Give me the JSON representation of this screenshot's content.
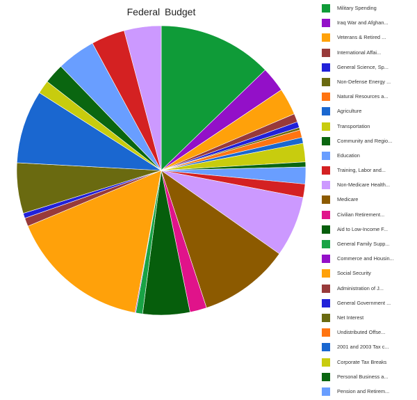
{
  "chart_data": {
    "type": "pie",
    "title": "Federal Budget",
    "legend_position": "right",
    "series": [
      {
        "name": "Military Spending",
        "value": 13.6,
        "color": "#0f9b38"
      },
      {
        "name": "Iraq War and Afghan...",
        "value": 3.0,
        "color": "#9310c8"
      },
      {
        "name": "Veterans & Retired ...",
        "value": 3.2,
        "color": "#ffa10a"
      },
      {
        "name": "International Affai...",
        "value": 1.0,
        "color": "#983a3a"
      },
      {
        "name": "General Science, Sp...",
        "value": 0.7,
        "color": "#2121d9"
      },
      {
        "name": "Non-Defense Energy ...",
        "value": 0.3,
        "color": "#6a6a10"
      },
      {
        "name": "Natural Resources a...",
        "value": 0.9,
        "color": "#ff7411"
      },
      {
        "name": "Agriculture",
        "value": 0.7,
        "color": "#1a67d0"
      },
      {
        "name": "Transportation",
        "value": 2.2,
        "color": "#c8cc0e"
      },
      {
        "name": "Community and Regio...",
        "value": 0.6,
        "color": "#0a6610"
      },
      {
        "name": "Education",
        "value": 2.0,
        "color": "#699eff"
      },
      {
        "name": "Training, Labor and...",
        "value": 1.6,
        "color": "#d42122"
      },
      {
        "name": "Non-Medicare Health...",
        "value": 7.2,
        "color": "#cc99ff"
      },
      {
        "name": "Medicare",
        "value": 10.8,
        "color": "#8c5a00"
      },
      {
        "name": "Civilian Retirement...",
        "value": 2.0,
        "color": "#e0138a"
      },
      {
        "name": "Aid to Low-Income F...",
        "value": 5.6,
        "color": "#065e0c"
      },
      {
        "name": "General Family Supp...",
        "value": 0.8,
        "color": "#18a345"
      },
      {
        "name": "Commerce and Housin...",
        "value": 0.1,
        "color": "#9310c8"
      },
      {
        "name": "Social Security",
        "value": 16.8,
        "color": "#ffa10a"
      },
      {
        "name": "Administration of J...",
        "value": 1.0,
        "color": "#983a3a"
      },
      {
        "name": "General Government ...",
        "value": 0.6,
        "color": "#2121d9"
      },
      {
        "name": "Net Interest",
        "value": 6.0,
        "color": "#6a6a10"
      },
      {
        "name": "Undistributed Offse...",
        "value": 0.0,
        "color": "#ff7411"
      },
      {
        "name": "2001 and 2003 Tax c...",
        "value": 8.7,
        "color": "#1a67d0"
      },
      {
        "name": "Corporate Tax Breaks",
        "value": 1.6,
        "color": "#c8cc0e"
      },
      {
        "name": "Personal Business a...",
        "value": 2.4,
        "color": "#0a6610"
      },
      {
        "name": "Pension and Retirem...",
        "value": 4.6,
        "color": "#699eff"
      },
      {
        "name": "",
        "value": 4.0,
        "color": "#d42122"
      },
      {
        "name": "",
        "value": 4.4,
        "color": "#cc99ff"
      }
    ]
  }
}
